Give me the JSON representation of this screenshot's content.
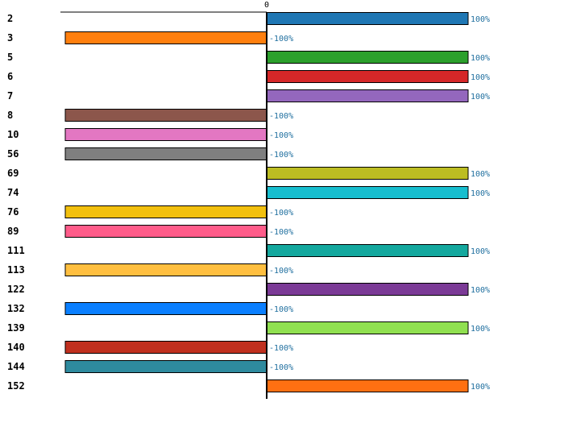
{
  "chart_data": {
    "type": "bar",
    "orientation": "horizontal",
    "title": "",
    "xlabel": "",
    "ylabel": "",
    "xlim": [
      -100,
      100
    ],
    "zero_tick_label": "0",
    "value_suffix": "%",
    "grid": false,
    "legend": "none",
    "categories": [
      "2",
      "3",
      "5",
      "6",
      "7",
      "8",
      "10",
      "56",
      "69",
      "74",
      "76",
      "89",
      "111",
      "113",
      "122",
      "132",
      "139",
      "140",
      "144",
      "152"
    ],
    "values": [
      100,
      -100,
      100,
      100,
      100,
      -100,
      -100,
      -100,
      100,
      100,
      -100,
      -100,
      100,
      -100,
      100,
      -100,
      100,
      -100,
      -100,
      100
    ],
    "colors": [
      "#1f77b4",
      "#ff7f0e",
      "#2ca02c",
      "#d62728",
      "#9467bd",
      "#8c564b",
      "#e377c2",
      "#7f7f7f",
      "#bcbd22",
      "#17becf",
      "#f2c00e",
      "#ff5c8a",
      "#14a89e",
      "#ffbf40",
      "#7b3a96",
      "#0a7fff",
      "#90e050",
      "#c0301f",
      "#2e8a9e",
      "#ff7012"
    ]
  }
}
